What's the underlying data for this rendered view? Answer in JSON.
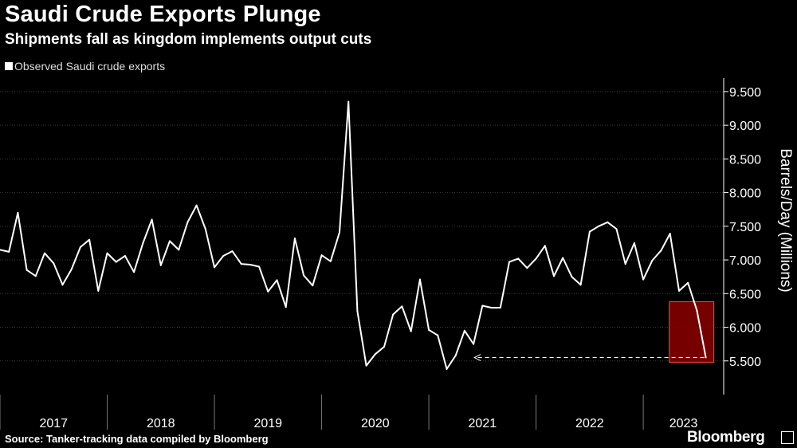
{
  "header": {
    "title": "Saudi Crude Exports Plunge",
    "subtitle": "Shipments fall as kingdom implements output cuts"
  },
  "legend": {
    "label": "Observed Saudi crude exports"
  },
  "footer": {
    "source": "Source: Tanker-tracking data compiled by Bloomberg",
    "brand": "Bloomberg"
  },
  "colors": {
    "background": "#000000",
    "line": "#ffffff",
    "highlight_fill": "#8b0000",
    "highlight_stroke": "#e23b3b",
    "grid": "#3a3a3a"
  },
  "chart_data": {
    "type": "line",
    "title": "Saudi Crude Exports Plunge",
    "subtitle": "Shipments fall as kingdom implements output cuts",
    "xlabel": "",
    "ylabel": "Barrels/Day (Millions)",
    "ylim": [
      5.0,
      9.7
    ],
    "yticks": [
      5.5,
      6.0,
      6.5,
      7.0,
      7.5,
      8.0,
      8.5,
      9.0,
      9.5
    ],
    "ytick_labels": [
      "5.500",
      "6.000",
      "6.500",
      "7.000",
      "7.500",
      "8.000",
      "8.500",
      "9.000",
      "9.500"
    ],
    "x_start": 2017.0,
    "x_end": 2023.75,
    "year_labels": [
      "2017",
      "2018",
      "2019",
      "2020",
      "2021",
      "2022",
      "2023"
    ],
    "grid": "horizontal dotted",
    "series": [
      {
        "name": "Observed Saudi crude exports",
        "start": "2017-01",
        "frequency": "monthly",
        "values": [
          7.15,
          7.12,
          7.7,
          6.85,
          6.76,
          7.1,
          6.95,
          6.63,
          6.86,
          7.19,
          7.3,
          6.54,
          7.1,
          6.97,
          7.06,
          6.82,
          7.25,
          7.6,
          6.92,
          7.28,
          7.15,
          7.56,
          7.81,
          7.46,
          6.89,
          7.06,
          7.13,
          6.94,
          6.93,
          6.9,
          6.53,
          6.7,
          6.3,
          7.32,
          6.77,
          6.62,
          7.07,
          6.98,
          7.41,
          9.35,
          6.24,
          5.43,
          5.6,
          5.71,
          6.19,
          6.31,
          5.94,
          6.71,
          5.96,
          5.88,
          5.38,
          5.58,
          5.95,
          5.75,
          6.32,
          6.29,
          6.29,
          6.97,
          7.02,
          6.88,
          7.02,
          7.21,
          6.76,
          7.03,
          6.75,
          6.63,
          7.42,
          7.5,
          7.56,
          7.46,
          6.94,
          7.25,
          6.71,
          6.99,
          7.14,
          7.39,
          6.54,
          6.66,
          6.25,
          5.55
        ]
      }
    ],
    "annotations": [
      {
        "type": "highlight-box",
        "x_from": "2023-04",
        "x_to": "2023-09",
        "y_from": 5.48,
        "y_to": 6.38
      },
      {
        "type": "dashed-arrow",
        "from_month": "2023-08",
        "to_month": "2021-06",
        "y": 5.55
      }
    ]
  }
}
